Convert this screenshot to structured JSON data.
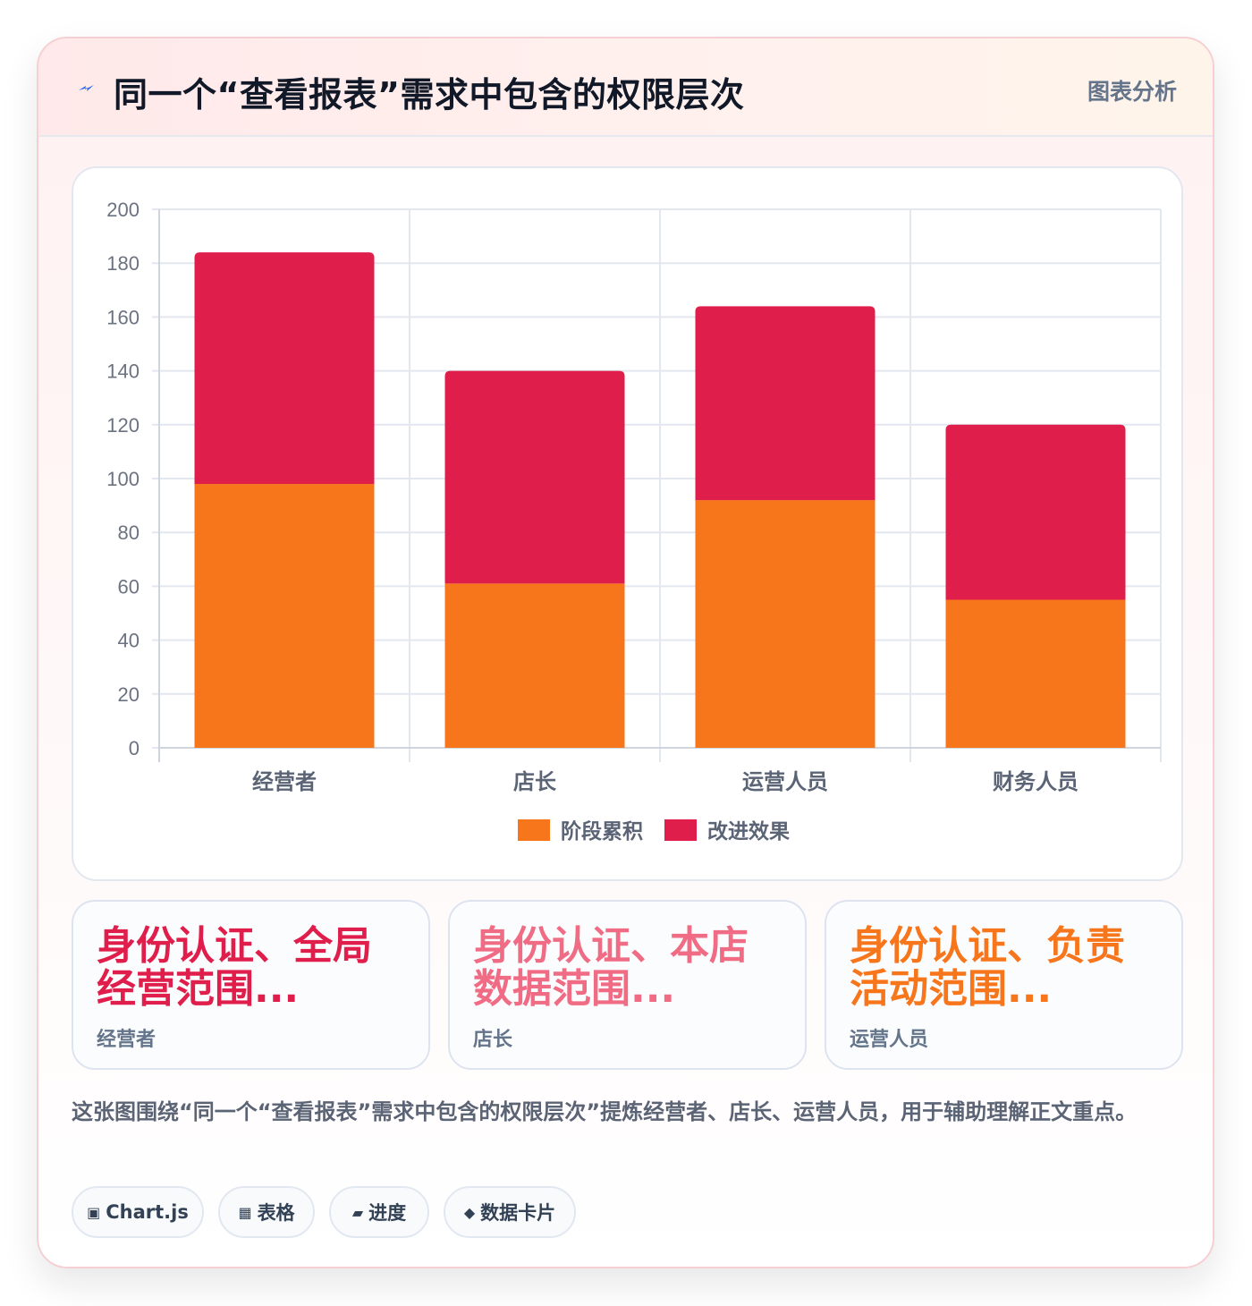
{
  "header": {
    "title": "同一个“查看报表”需求中包含的权限层次",
    "tag": "图表分析",
    "icon": "lightning-icon",
    "icon_color": "#2563eb"
  },
  "chart_data": {
    "type": "bar",
    "stacked": true,
    "categories": [
      "经营者",
      "店长",
      "运营人员",
      "财务人员"
    ],
    "series": [
      {
        "name": "阶段累积",
        "values": [
          98,
          61,
          92,
          55
        ],
        "color": "#f7751b"
      },
      {
        "name": "改进效果",
        "values": [
          86,
          79,
          72,
          65
        ],
        "color": "#e01e4b"
      }
    ],
    "ylim": [
      0,
      200
    ],
    "yticks": [
      0,
      20,
      40,
      60,
      80,
      100,
      120,
      140,
      160,
      180,
      200
    ],
    "grid": true,
    "legend": "bottom",
    "title": "",
    "xlabel": "",
    "ylabel": ""
  },
  "stats": [
    {
      "value": "身份认证、全局经营范围...",
      "label": "经营者",
      "color": "#e01e4b"
    },
    {
      "value": "身份认证、本店数据范围...",
      "label": "店长",
      "color": "#f06b84"
    },
    {
      "value": "身份认证、负责活动范围...",
      "label": "运营人员",
      "color": "#f7751b"
    }
  ],
  "description": "这张图围绕“同一个“查看报表”需求中包含的权限层次”提炼经营者、店长、运营人员，用于辅助理解正文重点。",
  "chips": [
    {
      "label": "Chart.js",
      "icon": "▣"
    },
    {
      "label": "表格",
      "icon": "▦"
    },
    {
      "label": "进度",
      "icon": "▰"
    },
    {
      "label": "数据卡片",
      "icon": "◆"
    }
  ]
}
